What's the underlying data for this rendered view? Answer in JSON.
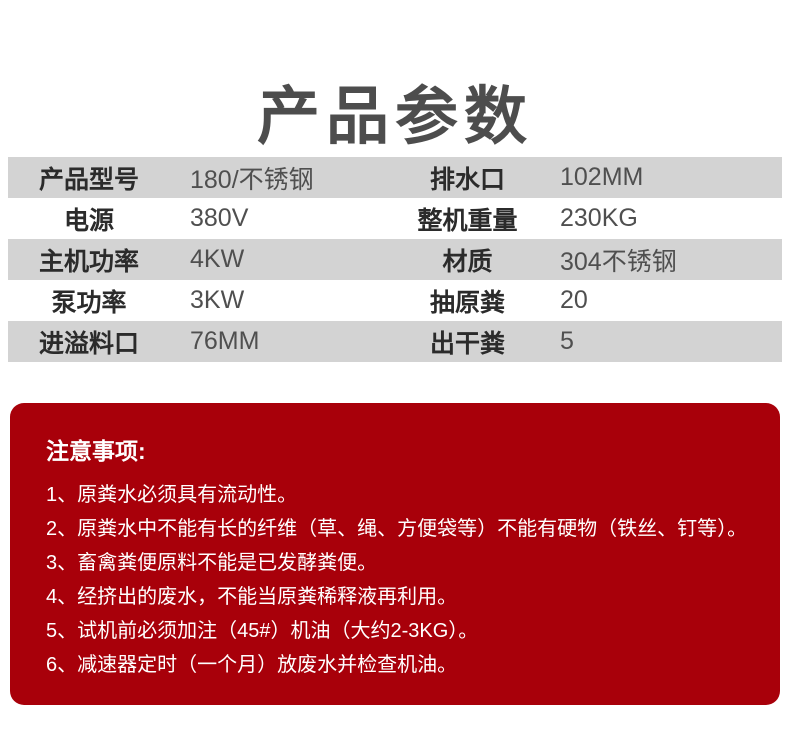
{
  "page": {
    "title": "产品参数"
  },
  "colors": {
    "row_stripe_gray": "#d3d3d3",
    "notice_red": "#a8000a",
    "title_gray": "#4d4d4d"
  },
  "spec_table": {
    "rows": [
      {
        "l1": "产品型号",
        "v1": "180/不锈钢",
        "l2": "排水口",
        "v2": "102MM"
      },
      {
        "l1": "电源",
        "v1": "380V",
        "l2": "整机重量",
        "v2": "230KG"
      },
      {
        "l1": "主机功率",
        "v1": "4KW",
        "l2": "材质",
        "v2": "304不锈钢"
      },
      {
        "l1": "泵功率",
        "v1": "3KW",
        "l2": "抽原粪",
        "v2": "20"
      },
      {
        "l1": "进溢料口",
        "v1": "76MM",
        "l2": "出干粪",
        "v2": "5"
      }
    ]
  },
  "notice": {
    "heading": "注意事项:",
    "items": [
      "1、原粪水必须具有流动性。",
      "2、原粪水中不能有长的纤维（草、绳、方便袋等）不能有硬物（铁丝、钉等）。",
      "3、畜禽粪便原料不能是已发酵粪便。",
      "4、经挤出的废水，不能当原粪稀释液再利用。",
      "5、试机前必须加注（45#）机油（大约2-3KG）。",
      "6、减速器定时（一个月）放废水并检查机油。"
    ]
  }
}
